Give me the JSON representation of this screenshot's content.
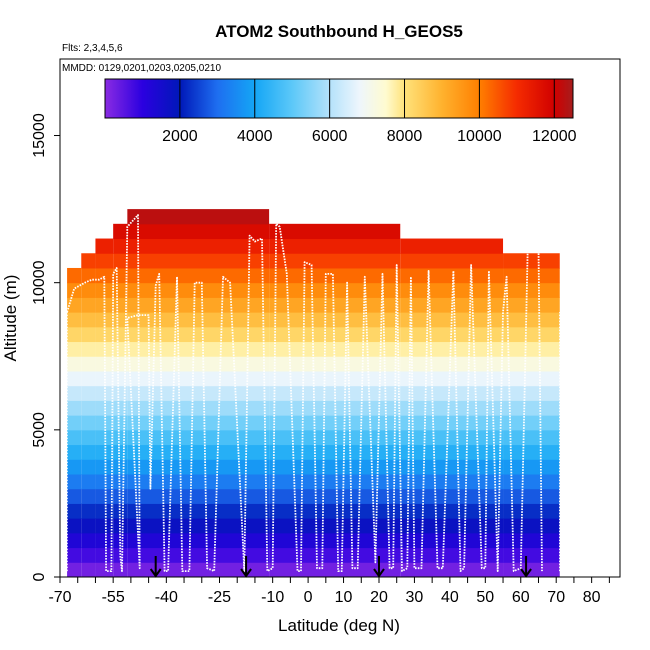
{
  "chart_data": {
    "type": "heatmap",
    "title": "ATOM2 Southbound H_GEOS5",
    "subtitle_flights": "Flts: 2,3,4,5,6",
    "subtitle_dates": "MMDD: 0129,0201,0203,0205,0210",
    "xlabel": "Latitude (deg N)",
    "ylabel": "Altitude (m)",
    "xlim": [
      -70,
      88
    ],
    "ylim": [
      0,
      17600
    ],
    "x_ticks": [
      -70,
      -65,
      -60,
      -55,
      -50,
      -45,
      -40,
      -35,
      -30,
      -25,
      -20,
      -15,
      -10,
      -5,
      0,
      5,
      10,
      15,
      20,
      25,
      30,
      35,
      40,
      45,
      50,
      55,
      60,
      65,
      70,
      75,
      80,
      85
    ],
    "x_tick_labels": [
      "-70",
      "-55",
      "-40",
      "-25",
      "-10",
      "0",
      "10",
      "20",
      "30",
      "40",
      "50",
      "60",
      "70",
      "80"
    ],
    "x_tick_label_values": [
      -70,
      -55,
      -40,
      -25,
      -10,
      0,
      10,
      20,
      30,
      40,
      50,
      60,
      70,
      80
    ],
    "y_ticks": [
      0,
      5000,
      10000,
      15000
    ],
    "y_tick_labels": [
      "0",
      "5000",
      "10000",
      "15000"
    ],
    "colorbar": {
      "range": [
        0,
        12500
      ],
      "ticks": [
        2000,
        4000,
        6000,
        8000,
        10000,
        12000
      ],
      "tick_labels": [
        "2000",
        "4000",
        "6000",
        "8000",
        "10000",
        "12000"
      ],
      "stops": [
        {
          "value": 0,
          "color": "#8a2be2"
        },
        {
          "value": 1000,
          "color": "#2b00e0"
        },
        {
          "value": 2000,
          "color": "#0018b8"
        },
        {
          "value": 3000,
          "color": "#1e6ef0"
        },
        {
          "value": 4000,
          "color": "#14a6f5"
        },
        {
          "value": 5000,
          "color": "#5cc8f8"
        },
        {
          "value": 6000,
          "color": "#b4e2fb"
        },
        {
          "value": 6800,
          "color": "#eef6fc"
        },
        {
          "value": 7500,
          "color": "#fffbd0"
        },
        {
          "value": 8000,
          "color": "#ffe27a"
        },
        {
          "value": 9000,
          "color": "#ffb22e"
        },
        {
          "value": 10000,
          "color": "#ff7f00"
        },
        {
          "value": 11000,
          "color": "#f52b00"
        },
        {
          "value": 12000,
          "color": "#d00000"
        },
        {
          "value": 12500,
          "color": "#a61d1d"
        }
      ]
    },
    "band_step_m": 500,
    "coverage_segments": [
      {
        "x0": -68,
        "x1": -64,
        "top": 10500
      },
      {
        "x0": -64,
        "x1": -60,
        "top": 11000
      },
      {
        "x0": -60,
        "x1": -55,
        "top": 11500
      },
      {
        "x0": -55,
        "x1": -51,
        "top": 12000
      },
      {
        "x0": -51,
        "x1": -11,
        "top": 12500
      },
      {
        "x0": -11,
        "x1": 26,
        "top": 12000
      },
      {
        "x0": 26,
        "x1": 55,
        "top": 11500
      },
      {
        "x0": 55,
        "x1": 71,
        "top": 11000
      }
    ],
    "left_edge_lat": -68,
    "right_edge_lat": 71,
    "surface_markers_lat": [
      -43,
      -17.5,
      20,
      61.5
    ],
    "flight_track": [
      [
        -68,
        9000
      ],
      [
        -66,
        9800
      ],
      [
        -63,
        10000
      ],
      [
        -61,
        10100
      ],
      [
        -59,
        10100
      ],
      [
        -57.5,
        10200
      ],
      [
        -57,
        200
      ],
      [
        -55.5,
        200
      ],
      [
        -55,
        10300
      ],
      [
        -54,
        10500
      ],
      [
        -53,
        700
      ],
      [
        -52.5,
        200
      ],
      [
        -51,
        11900
      ],
      [
        -48,
        12300
      ],
      [
        -47.5,
        300
      ],
      [
        -51,
        8800
      ],
      [
        -48,
        8900
      ],
      [
        -45,
        8900
      ],
      [
        -44.5,
        3000
      ],
      [
        -43,
        9900
      ],
      [
        -42,
        10300
      ],
      [
        -40.5,
        200
      ],
      [
        -39.5,
        200
      ],
      [
        -37,
        10200
      ],
      [
        -35.5,
        200
      ],
      [
        -33.5,
        200
      ],
      [
        -32,
        10000
      ],
      [
        -30,
        10000
      ],
      [
        -28.5,
        300
      ],
      [
        -26.5,
        200
      ],
      [
        -24,
        10200
      ],
      [
        -22,
        10000
      ],
      [
        -18,
        200
      ],
      [
        -16.5,
        11600
      ],
      [
        -15,
        11400
      ],
      [
        -13,
        11500
      ],
      [
        -11.5,
        200
      ],
      [
        -10,
        300
      ],
      [
        -9,
        12000
      ],
      [
        -8,
        11900
      ],
      [
        -6,
        10300
      ],
      [
        -3,
        200
      ],
      [
        -2,
        200
      ],
      [
        -1,
        10700
      ],
      [
        1,
        10600
      ],
      [
        2.5,
        300
      ],
      [
        4,
        300
      ],
      [
        5,
        10300
      ],
      [
        7,
        10300
      ],
      [
        8.5,
        200
      ],
      [
        9.5,
        200
      ],
      [
        11,
        10000
      ],
      [
        12.5,
        300
      ],
      [
        14,
        300
      ],
      [
        16,
        10200
      ],
      [
        19,
        500
      ],
      [
        21,
        10300
      ],
      [
        23,
        300
      ],
      [
        24,
        300
      ],
      [
        25,
        10600
      ],
      [
        26.5,
        200
      ],
      [
        28,
        300
      ],
      [
        29,
        10200
      ],
      [
        30,
        300
      ],
      [
        32,
        300
      ],
      [
        34,
        10400
      ],
      [
        36.5,
        300
      ],
      [
        38,
        300
      ],
      [
        41,
        10400
      ],
      [
        43,
        200
      ],
      [
        44,
        300
      ],
      [
        46,
        10600
      ],
      [
        49,
        300
      ],
      [
        50,
        300
      ],
      [
        51,
        10400
      ],
      [
        53.5,
        200
      ],
      [
        55,
        9000
      ],
      [
        56,
        10200
      ],
      [
        58,
        200
      ],
      [
        60,
        300
      ],
      [
        62,
        11300
      ],
      [
        65,
        11200
      ],
      [
        66,
        200
      ]
    ]
  }
}
